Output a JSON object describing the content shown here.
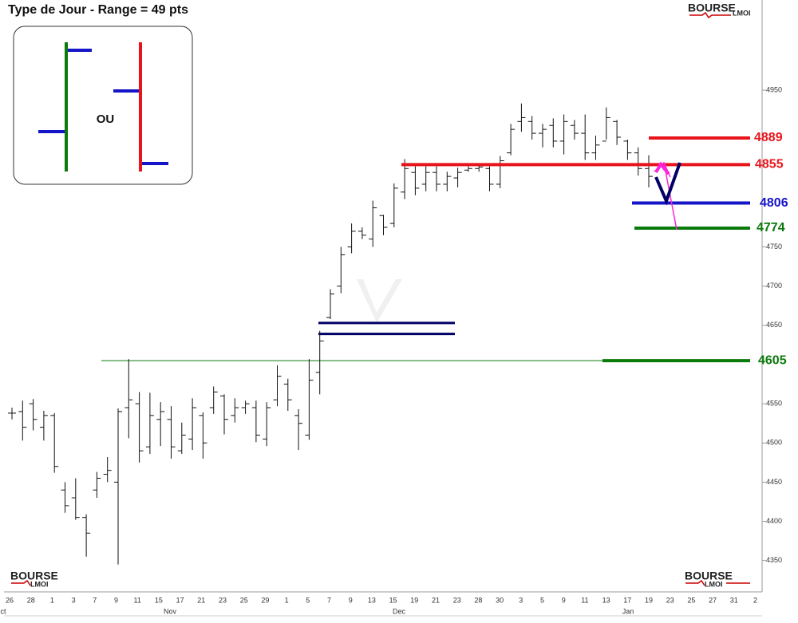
{
  "chart_data": {
    "type": "ohlc",
    "title": "Type de Jour - Range = 49 pts",
    "ohlc": {
      "open": [
        4538,
        4540,
        4550,
        4520,
        4535,
        4440,
        4430,
        4405,
        4440,
        4460,
        4450,
        4545,
        4550,
        4495,
        4530,
        4530,
        4490,
        4505,
        4535,
        4545,
        4560,
        4535,
        4545,
        4545,
        4505,
        4555,
        4575,
        4535,
        4510,
        4590,
        4660,
        4700,
        4750,
        4770,
        4760,
        4790,
        4780,
        4820,
        4845,
        4830,
        4845,
        4830,
        4838,
        4848,
        4850,
        4850,
        4830,
        4870,
        4910,
        4910,
        4895,
        4905,
        4885,
        4905,
        4895,
        4870,
        4885,
        4910,
        4885,
        4870,
        4850
      ],
      "high": [
        4545,
        4554,
        4556,
        4541,
        4538,
        4450,
        4455,
        4409,
        4463,
        4482,
        4544,
        4607,
        4565,
        4564,
        4552,
        4547,
        4526,
        4557,
        4539,
        4572,
        4562,
        4557,
        4554,
        4554,
        4552,
        4599,
        4582,
        4543,
        4607,
        4643,
        4696,
        4750,
        4780,
        4775,
        4809,
        4791,
        4831,
        4862,
        4853,
        4853,
        4853,
        4846,
        4851,
        4853,
        4856,
        4853,
        4866,
        4907,
        4933,
        4917,
        4907,
        4914,
        4919,
        4912,
        4919,
        4892,
        4928,
        4912,
        4887,
        4877,
        4867
      ],
      "low": [
        4530,
        4503,
        4516,
        4503,
        4462,
        4411,
        4402,
        4355,
        4430,
        4450,
        4345,
        4506,
        4475,
        4486,
        4496,
        4480,
        4486,
        4491,
        4480,
        4537,
        4511,
        4526,
        4537,
        4501,
        4496,
        4547,
        4541,
        4491,
        4504,
        4562,
        4658,
        4691,
        4742,
        4760,
        4750,
        4765,
        4775,
        4811,
        4816,
        4821,
        4821,
        4821,
        4826,
        4846,
        4846,
        4821,
        4825,
        4867,
        4897,
        4887,
        4877,
        4877,
        4868,
        4887,
        4861,
        4861,
        4887,
        4880,
        4861,
        4841,
        4826
      ],
      "close": [
        4538,
        4520,
        4530,
        4535,
        4470,
        4420,
        4405,
        4385,
        4455,
        4465,
        4540,
        4555,
        4490,
        4535,
        4540,
        4495,
        4510,
        4545,
        4500,
        4565,
        4530,
        4545,
        4550,
        4510,
        4545,
        4585,
        4555,
        4525,
        4580,
        4630,
        4690,
        4740,
        4770,
        4765,
        4800,
        4775,
        4825,
        4850,
        4825,
        4845,
        4830,
        4840,
        4845,
        4850,
        4852,
        4830,
        4860,
        4900,
        4915,
        4895,
        4900,
        4885,
        4910,
        4895,
        4870,
        4880,
        4915,
        4890,
        4870,
        4850,
        4840
      ]
    },
    "color": "#111111",
    "ylim": [
      4310,
      5065
    ],
    "yticks": [
      4950,
      4750,
      4700,
      4650,
      4550,
      4500,
      4450,
      4400,
      4350
    ],
    "x_tick_labels": [
      "26",
      "28",
      "1",
      "3",
      "7",
      "9",
      "11",
      "15",
      "17",
      "21",
      "23",
      "25",
      "29",
      "1",
      "5",
      "7",
      "9",
      "13",
      "15",
      "19",
      "21",
      "23",
      "28",
      "30",
      "3",
      "5",
      "9",
      "11",
      "13",
      "17",
      "19",
      "23",
      "25",
      "27",
      "31",
      "2"
    ],
    "months": [
      "ct",
      "Nov",
      "Dec",
      "Jan"
    ],
    "levels": [
      {
        "value": 4889,
        "color": "#e8141c"
      },
      {
        "value": 4855,
        "color": "#e8141c"
      },
      {
        "value": 4806,
        "color": "#1414c8"
      },
      {
        "value": 4774,
        "color": "#0a7a0a"
      },
      {
        "value": 4605,
        "color": "#0a7a0a"
      }
    ],
    "zone_lines": {
      "values": [
        4653,
        4639
      ],
      "color": "#000066"
    }
  },
  "inset": {
    "label": "OU"
  },
  "logo": {
    "name": "BOURSE",
    "sub": "LMOI"
  }
}
